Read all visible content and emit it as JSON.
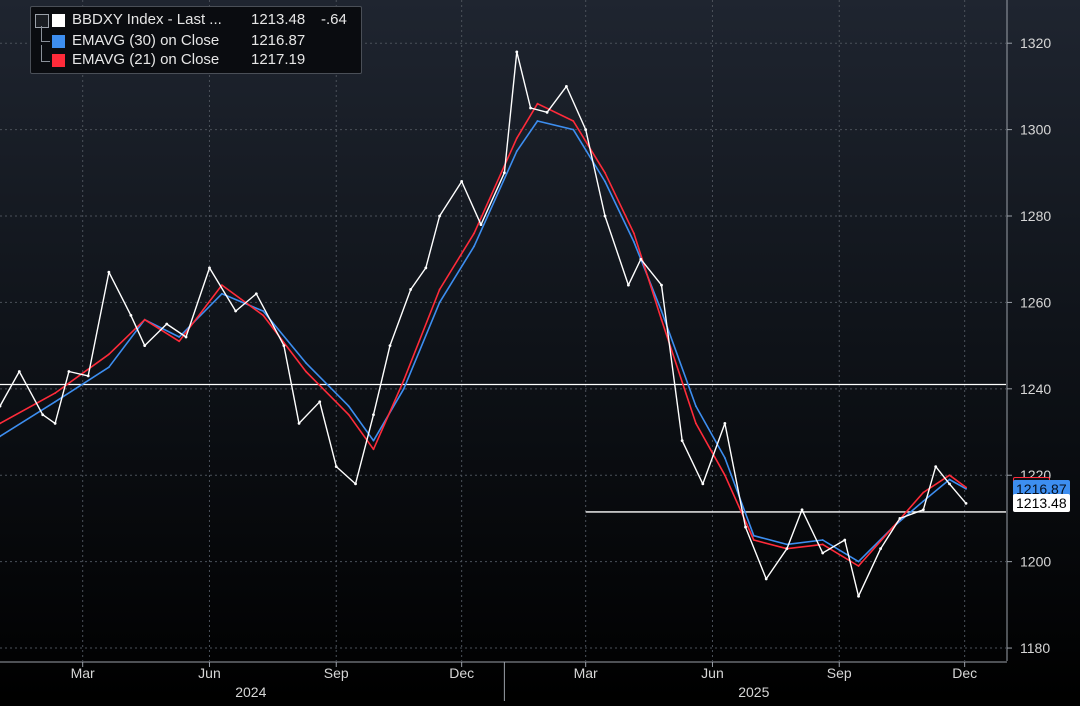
{
  "legend": {
    "items": [
      {
        "label": "BBDXY Index - Last ...",
        "value": "1213.48",
        "change": "-.64",
        "color": "#ffffff"
      },
      {
        "label": "EMAVG (30)  on Close",
        "value": "1216.87",
        "color": "#3d8ef0"
      },
      {
        "label": "EMAVG (21)  on Close",
        "value": "1217.19",
        "color": "#ff2b3a"
      }
    ]
  },
  "tags": {
    "last_price": "1213.48",
    "ema30": "1216.87",
    "ema21_partial": "1220"
  },
  "chart_data": {
    "type": "line",
    "title": "",
    "xlabel": "",
    "ylabel": "",
    "ylim": [
      1177,
      1330
    ],
    "yticks": [
      1180,
      1200,
      1220,
      1240,
      1260,
      1280,
      1300,
      1320
    ],
    "xticks": [
      "Mar",
      "Jun",
      "Sep",
      "Dec",
      "Mar",
      "Jun",
      "Sep",
      "Dec"
    ],
    "year_labels": [
      "2024",
      "2025"
    ],
    "x_range": [
      "2024-01-01",
      "2025-12-02"
    ],
    "reference_lines": [
      {
        "y": 1241,
        "from": "2024-01-01",
        "to": "2025-12-31",
        "color": "#ffffff"
      },
      {
        "y": 1211.5,
        "from": "2025-03-01",
        "to": "2025-12-31",
        "color": "#ffffff"
      }
    ],
    "series": [
      {
        "name": "BBDXY Index",
        "color": "#ffffff",
        "x": [
          "2024-01-01",
          "2024-01-15",
          "2024-02-01",
          "2024-02-10",
          "2024-02-20",
          "2024-03-05",
          "2024-03-20",
          "2024-04-05",
          "2024-04-15",
          "2024-05-01",
          "2024-05-15",
          "2024-06-01",
          "2024-06-20",
          "2024-07-05",
          "2024-07-25",
          "2024-08-05",
          "2024-08-20",
          "2024-09-01",
          "2024-09-15",
          "2024-09-28",
          "2024-10-10",
          "2024-10-25",
          "2024-11-05",
          "2024-11-15",
          "2024-12-01",
          "2024-12-15",
          "2025-01-01",
          "2025-01-10",
          "2025-01-20",
          "2025-02-01",
          "2025-02-15",
          "2025-03-01",
          "2025-03-15",
          "2025-04-01",
          "2025-04-10",
          "2025-04-25",
          "2025-05-10",
          "2025-05-25",
          "2025-06-10",
          "2025-06-25",
          "2025-07-10",
          "2025-07-25",
          "2025-08-05",
          "2025-08-20",
          "2025-09-05",
          "2025-09-15",
          "2025-10-01",
          "2025-10-15",
          "2025-11-01",
          "2025-11-10",
          "2025-11-20",
          "2025-12-02"
        ],
        "values": [
          1236,
          1244,
          1234,
          1232,
          1244,
          1243,
          1267,
          1257,
          1250,
          1255,
          1252,
          1268,
          1258,
          1262,
          1250,
          1232,
          1237,
          1222,
          1218,
          1234,
          1250,
          1263,
          1268,
          1280,
          1288,
          1278,
          1290,
          1318,
          1305,
          1304,
          1310,
          1300,
          1280,
          1264,
          1270,
          1264,
          1228,
          1218,
          1232,
          1208,
          1196,
          1203,
          1212,
          1202,
          1205,
          1192,
          1203,
          1210,
          1212,
          1222,
          1218,
          1213.48
        ]
      },
      {
        "name": "EMAVG (30)  on Close",
        "color": "#3d8ef0",
        "x": [
          "2024-01-01",
          "2024-02-10",
          "2024-03-20",
          "2024-04-15",
          "2024-05-10",
          "2024-06-10",
          "2024-07-10",
          "2024-08-10",
          "2024-09-10",
          "2024-09-28",
          "2024-10-20",
          "2024-11-15",
          "2024-12-10",
          "2025-01-10",
          "2025-01-25",
          "2025-02-20",
          "2025-03-15",
          "2025-04-05",
          "2025-04-25",
          "2025-05-20",
          "2025-06-10",
          "2025-07-01",
          "2025-07-25",
          "2025-08-20",
          "2025-09-15",
          "2025-10-10",
          "2025-11-01",
          "2025-11-20",
          "2025-12-02"
        ],
        "values": [
          1229,
          1237,
          1245,
          1256,
          1252,
          1262,
          1258,
          1246,
          1236,
          1228,
          1240,
          1260,
          1273,
          1295,
          1302,
          1300,
          1288,
          1274,
          1258,
          1236,
          1224,
          1206,
          1204,
          1205,
          1200,
          1208,
          1214,
          1219,
          1216.87
        ]
      },
      {
        "name": "EMAVG (21)  on Close",
        "color": "#ff2b3a",
        "x": [
          "2024-01-01",
          "2024-02-10",
          "2024-03-20",
          "2024-04-15",
          "2024-05-10",
          "2024-06-10",
          "2024-07-10",
          "2024-08-10",
          "2024-09-10",
          "2024-09-28",
          "2024-10-20",
          "2024-11-15",
          "2024-12-10",
          "2025-01-10",
          "2025-01-25",
          "2025-02-20",
          "2025-03-15",
          "2025-04-05",
          "2025-04-25",
          "2025-05-20",
          "2025-06-10",
          "2025-07-01",
          "2025-07-25",
          "2025-08-20",
          "2025-09-15",
          "2025-10-10",
          "2025-11-01",
          "2025-11-20",
          "2025-12-02"
        ],
        "values": [
          1232,
          1239,
          1248,
          1256,
          1251,
          1264,
          1257,
          1244,
          1234,
          1226,
          1242,
          1263,
          1276,
          1298,
          1306,
          1302,
          1290,
          1276,
          1256,
          1232,
          1220,
          1205,
          1203,
          1204,
          1199,
          1208,
          1216,
          1220,
          1217.19
        ]
      }
    ]
  }
}
